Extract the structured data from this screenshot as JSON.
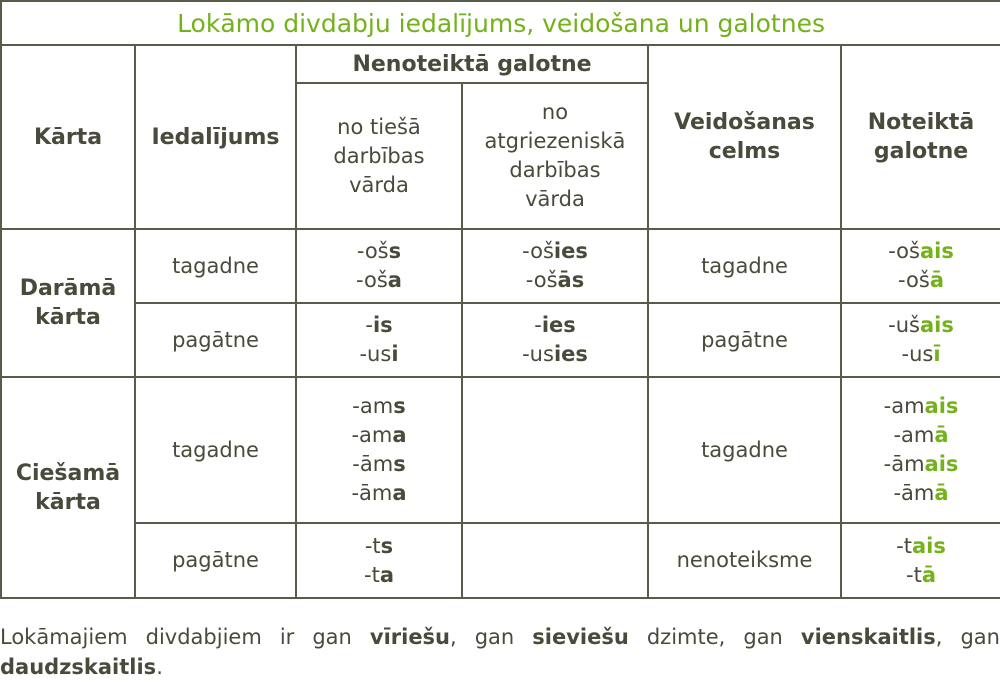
{
  "title": "Lokāmo divdabju iedalījums, veidošana un galotnes",
  "headers": {
    "karta": "Kārta",
    "iedalijums": "Iedalījums",
    "nenoteikta": "Nenoteiktā galotne",
    "no_tiesa": "no tiešā darbības vārda",
    "no_atgriez": "no atgriezeniskā darbības vārda",
    "veidosanas": "Veidošanas celms",
    "noteikta": "Noteiktā galotne"
  },
  "accent_color": "#74b21c",
  "groups": [
    {
      "karta": "Darāmā kārta"
    },
    {
      "karta": "Ciešamā kārta"
    }
  ],
  "rows": [
    {
      "iedalijums": "tagadne",
      "no_tiesa": [
        [
          "-oš",
          "s"
        ],
        [
          "-oš",
          "a"
        ]
      ],
      "no_atgriez": [
        [
          "-oš",
          "ies"
        ],
        [
          "-oš",
          "ās"
        ]
      ],
      "celms": "tagadne",
      "noteikta": [
        [
          "-oš",
          "ais"
        ],
        [
          "-oš",
          "ā"
        ]
      ]
    },
    {
      "iedalijums": "pagātne",
      "no_tiesa": [
        [
          "-",
          "is"
        ],
        [
          "-us",
          "i"
        ]
      ],
      "no_atgriez": [
        [
          "-",
          "ies"
        ],
        [
          "-us",
          "ies"
        ]
      ],
      "celms": "pagātne",
      "noteikta": [
        [
          "-uš",
          "ais"
        ],
        [
          "-us",
          "ī"
        ]
      ]
    },
    {
      "iedalijums": "tagadne",
      "no_tiesa": [
        [
          "-am",
          "s"
        ],
        [
          "-am",
          "a"
        ],
        [
          "-ām",
          "s"
        ],
        [
          "-ām",
          "a"
        ]
      ],
      "no_atgriez": [],
      "celms": "tagadne",
      "noteikta": [
        [
          "-am",
          "ais"
        ],
        [
          "-am",
          "ā"
        ],
        [
          "-ām",
          "ais"
        ],
        [
          "-ām",
          "ā"
        ]
      ]
    },
    {
      "iedalijums": "pagātne",
      "no_tiesa": [
        [
          "-t",
          "s"
        ],
        [
          "-t",
          "a"
        ]
      ],
      "no_atgriez": [],
      "celms": "nenoteiksme",
      "noteikta": [
        [
          "-t",
          "ais"
        ],
        [
          "-t",
          "ā"
        ]
      ]
    }
  ],
  "caption": {
    "t1": "Lokāmajiem divdabjiem ir gan ",
    "b1": "vīriešu",
    "t2": ", gan ",
    "b2": "sieviešu",
    "t3": " dzimte, gan ",
    "b3": "vienskaitlis",
    "t4": ", gan ",
    "b4": "daudzskaitlis",
    "t5": "."
  }
}
